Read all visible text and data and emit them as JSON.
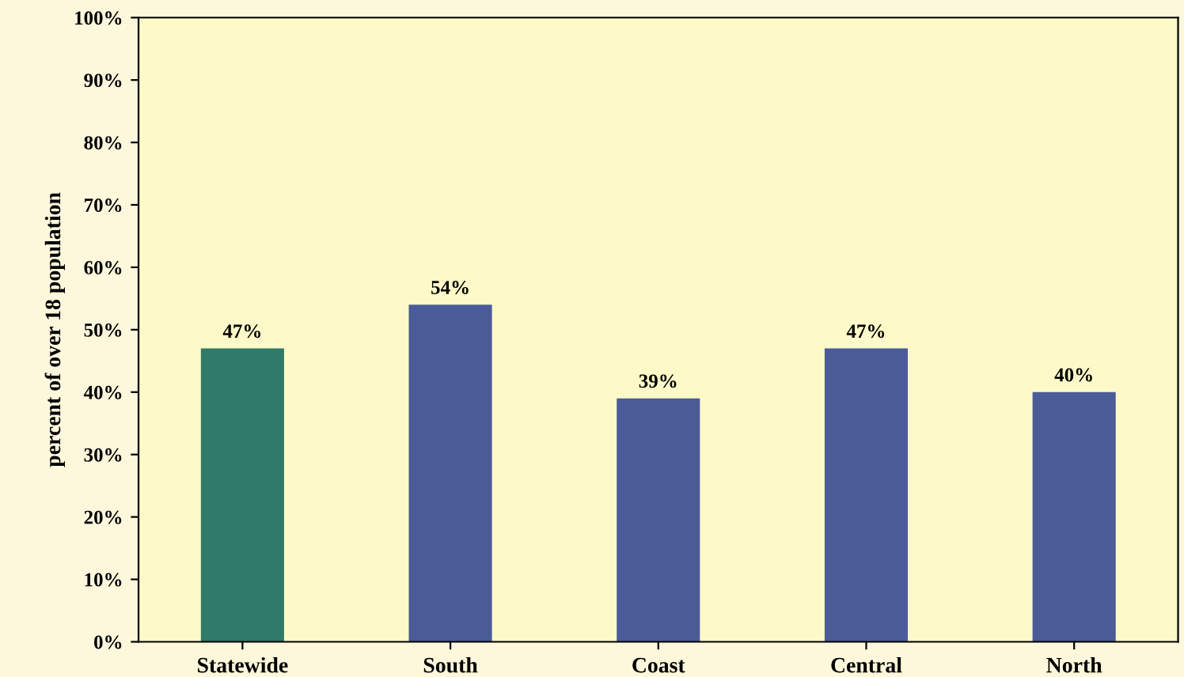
{
  "chart_data": {
    "type": "bar",
    "ylabel": "percent of over 18 population",
    "categories": [
      "Statewide",
      "South",
      "Coast",
      "Central",
      "North"
    ],
    "values": [
      47,
      54,
      39,
      47,
      40
    ],
    "value_labels": [
      "47%",
      "54%",
      "39%",
      "47%",
      "40%"
    ],
    "colors": [
      "#2f7a68",
      "#4a5b98",
      "#4a5b98",
      "#4a5b98",
      "#4a5b98"
    ],
    "ylim": [
      0,
      100
    ],
    "yticks": [
      {
        "value": 0,
        "label": "0%"
      },
      {
        "value": 10,
        "label": "10%"
      },
      {
        "value": 20,
        "label": "20%"
      },
      {
        "value": 30,
        "label": "30%"
      },
      {
        "value": 40,
        "label": "40%"
      },
      {
        "value": 50,
        "label": "50%"
      },
      {
        "value": 60,
        "label": "60%"
      },
      {
        "value": 70,
        "label": "70%"
      },
      {
        "value": 80,
        "label": "80%"
      },
      {
        "value": 90,
        "label": "90%"
      },
      {
        "value": 100,
        "label": "100%"
      }
    ],
    "grid": false,
    "legend": false
  }
}
